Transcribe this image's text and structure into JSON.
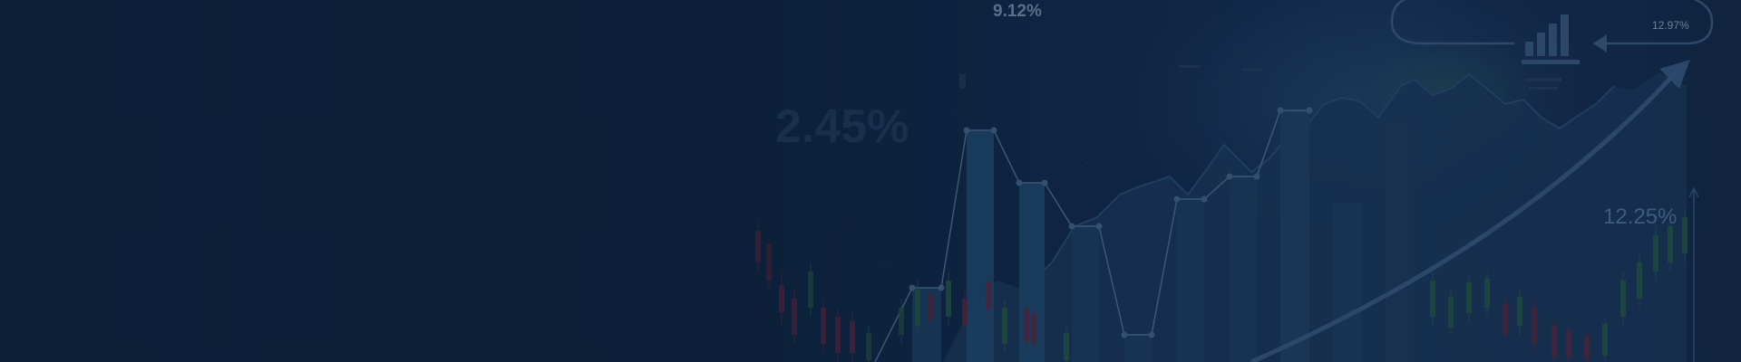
{
  "banner": {
    "percent_labels": {
      "top_center": "9.12%",
      "left_large": "2.45%",
      "right": "12.25%",
      "top_right": "12.97%"
    },
    "colors": {
      "background": "#0c1f38",
      "bar": "#1a3b5c",
      "line": "#3d5874",
      "arrow": "#3a5679",
      "candle_up": "#1e4a3f",
      "candle_down": "#4a2238"
    },
    "icons": [
      "bar-chart-icon",
      "trend-arrow-icon",
      "cycle-arrow-icon"
    ]
  }
}
